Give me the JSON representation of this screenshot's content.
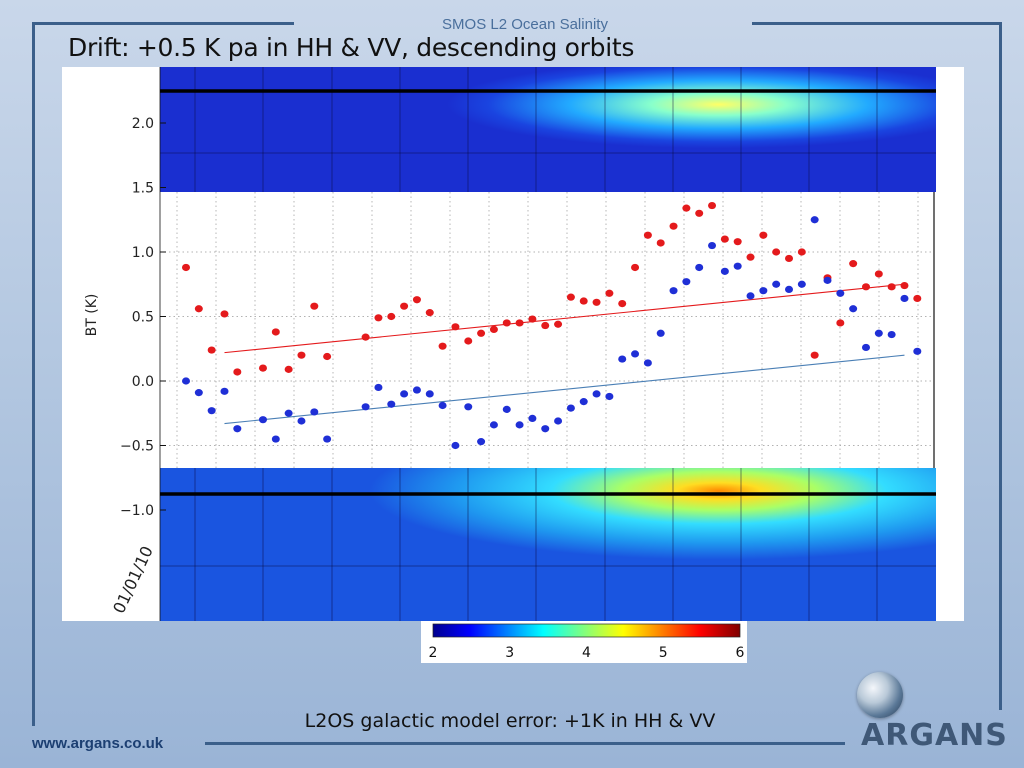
{
  "header": {
    "label": "SMOS L2 Ocean Salinity",
    "title": "Drift: +0.5 K pa in HH & VV, descending orbits"
  },
  "caption": "L2OS galactic model error: +1K in HH & VV",
  "footer": {
    "url": "www.argans.co.uk"
  },
  "logo": {
    "text": "ARGANS",
    "icon": "globe-icon"
  },
  "colors": {
    "frame": "#3b5f8a",
    "red_series": "#e41a1c",
    "blue_series": "#1f2fd6",
    "red_trend": "#e41a1c",
    "blue_trend": "#4a7fb5",
    "map_background": "#1f2fd6"
  },
  "chart_data": {
    "type": "scatter",
    "ylabel": "BT (K)",
    "xlabel": "",
    "ylim": [
      -1.0,
      2.3
    ],
    "yticks": [
      2.0,
      1.5,
      1.0,
      0.5,
      0.0,
      -0.5,
      -1.0
    ],
    "ytick_labels": [
      "2.0",
      "1.5",
      "1.0",
      "0.5",
      "0.0",
      "−0.5",
      "−1.0"
    ],
    "x_tick_label": "01/01/10",
    "grid": true,
    "series": [
      {
        "color": "red",
        "points": [
          [
            1,
            0.88
          ],
          [
            2,
            0.56
          ],
          [
            3,
            0.24
          ],
          [
            4,
            0.52
          ],
          [
            5,
            0.07
          ],
          [
            7,
            0.1
          ],
          [
            8,
            0.38
          ],
          [
            9,
            0.09
          ],
          [
            10,
            0.2
          ],
          [
            11,
            0.58
          ],
          [
            12,
            0.19
          ],
          [
            15,
            0.34
          ],
          [
            16,
            0.49
          ],
          [
            17,
            0.5
          ],
          [
            18,
            0.58
          ],
          [
            19,
            0.63
          ],
          [
            20,
            0.53
          ],
          [
            21,
            0.27
          ],
          [
            22,
            0.42
          ],
          [
            23,
            0.31
          ],
          [
            24,
            0.37
          ],
          [
            25,
            0.4
          ],
          [
            26,
            0.45
          ],
          [
            27,
            0.45
          ],
          [
            28,
            0.48
          ],
          [
            29,
            0.43
          ],
          [
            30,
            0.44
          ],
          [
            31,
            0.65
          ],
          [
            32,
            0.62
          ],
          [
            33,
            0.61
          ],
          [
            34,
            0.68
          ],
          [
            35,
            0.6
          ],
          [
            36,
            0.88
          ],
          [
            37,
            1.13
          ],
          [
            38,
            1.07
          ],
          [
            39,
            1.2
          ],
          [
            40,
            1.34
          ],
          [
            41,
            1.3
          ],
          [
            42,
            1.36
          ],
          [
            43,
            1.1
          ],
          [
            44,
            1.08
          ],
          [
            45,
            0.96
          ],
          [
            46,
            1.13
          ],
          [
            47,
            1.0
          ],
          [
            48,
            0.95
          ],
          [
            49,
            1.0
          ],
          [
            50,
            0.2
          ],
          [
            51,
            0.8
          ],
          [
            52,
            0.45
          ],
          [
            53,
            0.91
          ],
          [
            54,
            0.73
          ],
          [
            55,
            0.83
          ],
          [
            56,
            0.73
          ],
          [
            57,
            0.74
          ],
          [
            58,
            0.64
          ]
        ]
      },
      {
        "color": "blue",
        "points": [
          [
            1,
            0.0
          ],
          [
            2,
            -0.09
          ],
          [
            3,
            -0.23
          ],
          [
            4,
            -0.08
          ],
          [
            5,
            -0.37
          ],
          [
            7,
            -0.3
          ],
          [
            8,
            -0.45
          ],
          [
            9,
            -0.25
          ],
          [
            10,
            -0.31
          ],
          [
            11,
            -0.24
          ],
          [
            12,
            -0.45
          ],
          [
            15,
            -0.2
          ],
          [
            16,
            -0.05
          ],
          [
            17,
            -0.18
          ],
          [
            18,
            -0.1
          ],
          [
            19,
            -0.07
          ],
          [
            20,
            -0.1
          ],
          [
            21,
            -0.19
          ],
          [
            22,
            -0.5
          ],
          [
            23,
            -0.2
          ],
          [
            24,
            -0.47
          ],
          [
            25,
            -0.34
          ],
          [
            26,
            -0.22
          ],
          [
            27,
            -0.34
          ],
          [
            28,
            -0.29
          ],
          [
            29,
            -0.37
          ],
          [
            30,
            -0.31
          ],
          [
            31,
            -0.21
          ],
          [
            32,
            -0.16
          ],
          [
            33,
            -0.1
          ],
          [
            34,
            -0.12
          ],
          [
            35,
            0.17
          ],
          [
            36,
            0.21
          ],
          [
            37,
            0.14
          ],
          [
            38,
            0.37
          ],
          [
            39,
            0.7
          ],
          [
            40,
            0.77
          ],
          [
            41,
            0.88
          ],
          [
            42,
            1.05
          ],
          [
            43,
            0.85
          ],
          [
            44,
            0.89
          ],
          [
            45,
            0.66
          ],
          [
            46,
            0.7
          ],
          [
            47,
            0.75
          ],
          [
            48,
            0.71
          ],
          [
            49,
            0.75
          ],
          [
            50,
            1.25
          ],
          [
            51,
            0.78
          ],
          [
            52,
            0.68
          ],
          [
            53,
            0.56
          ],
          [
            54,
            0.26
          ],
          [
            55,
            0.37
          ],
          [
            56,
            0.36
          ],
          [
            57,
            0.64
          ],
          [
            58,
            0.23
          ]
        ]
      }
    ],
    "trend_lines": [
      {
        "color": "red",
        "x": [
          4,
          57
        ],
        "y": [
          0.22,
          0.75
        ]
      },
      {
        "color": "blue",
        "x": [
          4,
          57
        ],
        "y": [
          -0.33,
          0.2
        ]
      }
    ],
    "colorbar": {
      "range": [
        2,
        6
      ],
      "ticks": [
        "2",
        "3",
        "4",
        "5",
        "6"
      ],
      "colormap": "jet"
    },
    "map_field_peak": 5.8
  }
}
